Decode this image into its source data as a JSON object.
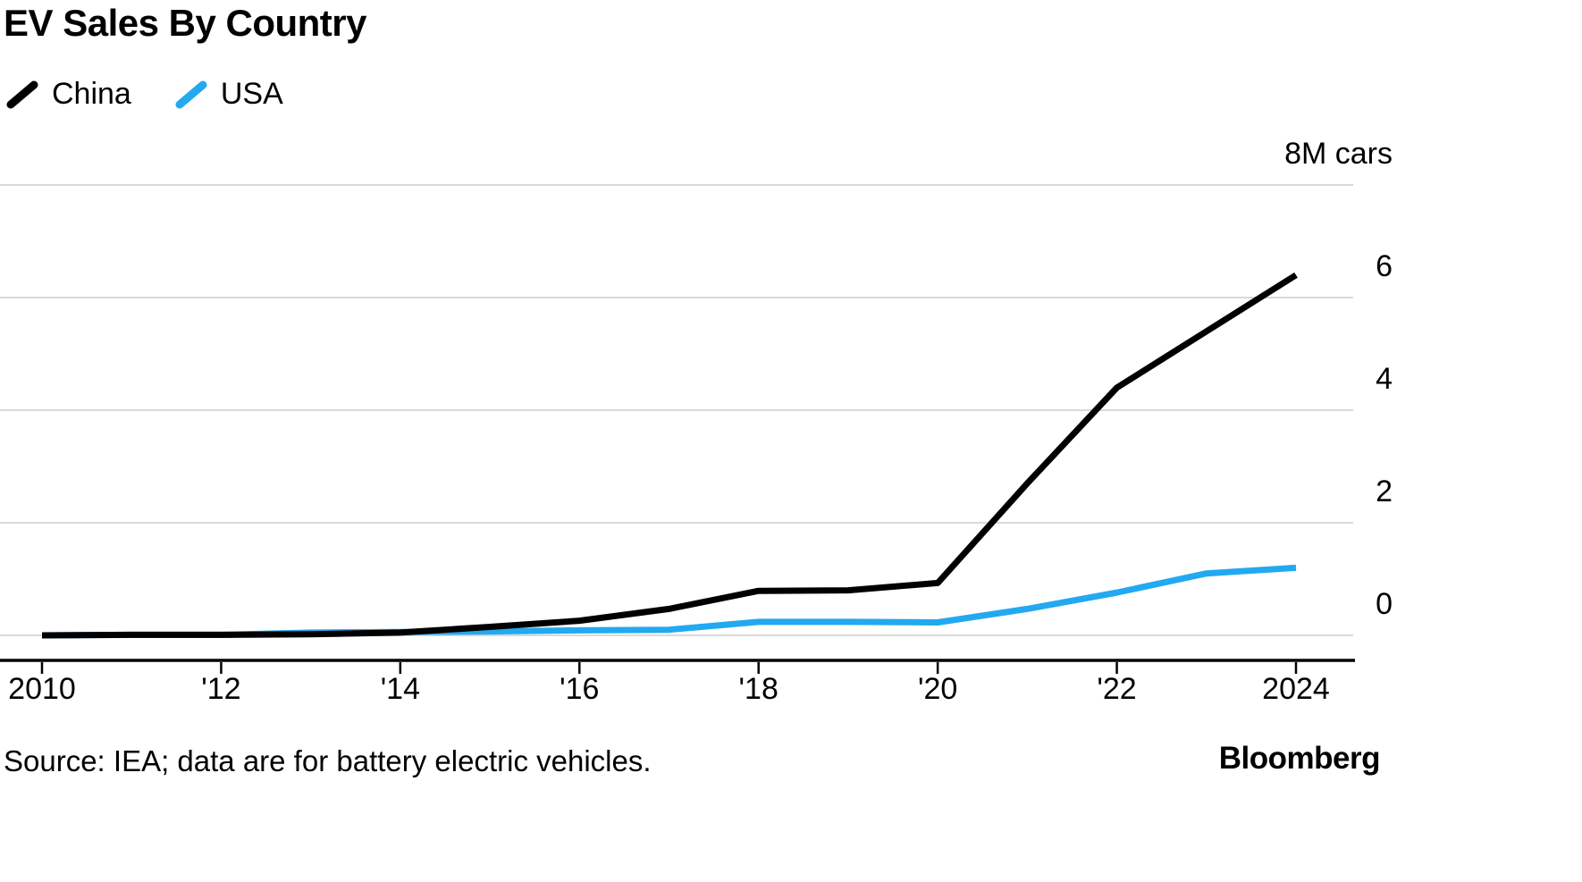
{
  "chart_data": {
    "type": "line",
    "title": "EV Sales By Country",
    "x": [
      2010,
      2011,
      2012,
      2013,
      2014,
      2015,
      2016,
      2017,
      2018,
      2019,
      2020,
      2021,
      2022,
      2023,
      2024
    ],
    "series": [
      {
        "name": "China",
        "color": "#000000",
        "values": [
          0.0,
          0.01,
          0.01,
          0.02,
          0.05,
          0.15,
          0.26,
          0.47,
          0.79,
          0.8,
          0.93,
          2.7,
          4.4,
          5.4,
          6.4
        ]
      },
      {
        "name": "USA",
        "color": "#22a9f0",
        "values": [
          0.0,
          0.01,
          0.01,
          0.05,
          0.06,
          0.07,
          0.09,
          0.1,
          0.24,
          0.24,
          0.23,
          0.47,
          0.76,
          1.1,
          1.2
        ]
      }
    ],
    "ylim": [
      0,
      8
    ],
    "yticks": [
      0,
      2,
      4,
      6,
      8
    ],
    "ytick_labels": [
      "0",
      "2",
      "4",
      "6",
      "8M cars"
    ],
    "xtick_years": [
      2010,
      2012,
      2014,
      2016,
      2018,
      2020,
      2022,
      2024
    ],
    "xtick_labels": [
      "2010",
      "'12",
      "'14",
      "'16",
      "'18",
      "'20",
      "'22",
      "2024"
    ],
    "grid": true,
    "legend_position": "top-left",
    "y_axis_side": "right"
  },
  "footer": {
    "source": "Source: IEA; data are for battery electric vehicles.",
    "brand": "Bloomberg"
  }
}
